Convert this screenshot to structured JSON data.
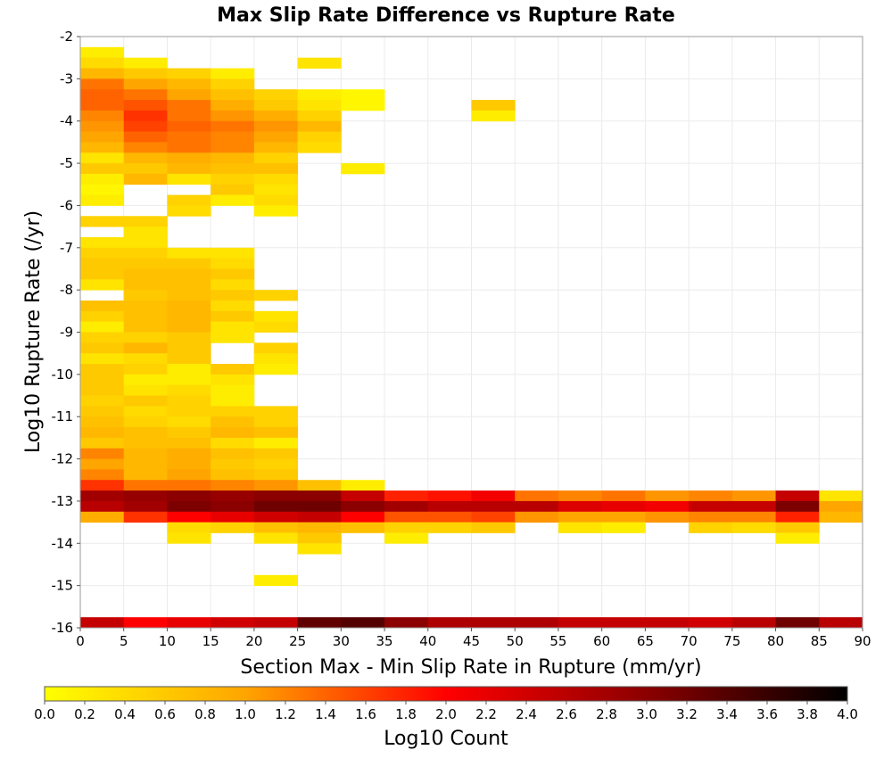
{
  "chart_data": {
    "type": "heatmap",
    "title": "Max Slip Rate Difference vs Rupture Rate",
    "xlabel": "Section Max - Min Slip Rate in Rupture (mm/yr)",
    "ylabel": "Log10 Rupture Rate (/yr)",
    "colorbar_label": "Log10 Count",
    "xlim": [
      0,
      90
    ],
    "ylim": [
      -16,
      -2
    ],
    "x_ticks": [
      "0",
      "5",
      "10",
      "15",
      "20",
      "25",
      "30",
      "35",
      "40",
      "45",
      "50",
      "55",
      "60",
      "65",
      "70",
      "75",
      "80",
      "85",
      "90"
    ],
    "y_ticks": [
      "-2",
      "-3",
      "-4",
      "-5",
      "-6",
      "-7",
      "-8",
      "-9",
      "-10",
      "-11",
      "-12",
      "-13",
      "-14",
      "-15",
      "-16"
    ],
    "colorbar_range": [
      0,
      4
    ],
    "colorbar_ticks": [
      "0.0",
      "0.2",
      "0.4",
      "0.6",
      "0.8",
      "1.0",
      "1.2",
      "1.4",
      "1.6",
      "1.8",
      "2.0",
      "2.2",
      "2.4",
      "2.6",
      "2.8",
      "3.0",
      "3.2",
      "3.4",
      "3.6",
      "3.8",
      "4.0"
    ],
    "colormap": [
      "#ffff00",
      "#ffa500",
      "#ff0000",
      "#8b0000",
      "#000000"
    ],
    "x_bin_width": 5,
    "y_bin_height": 0.25,
    "grid": true,
    "cells": [
      [
        0,
        -2.25,
        0.2
      ],
      [
        0,
        -2.5,
        0.4
      ],
      [
        5,
        -2.5,
        0.2
      ],
      [
        25,
        -2.5,
        0.3
      ],
      [
        0,
        -2.75,
        0.8
      ],
      [
        5,
        -2.75,
        0.6
      ],
      [
        10,
        -2.75,
        0.5
      ],
      [
        15,
        -2.75,
        0.2
      ],
      [
        0,
        -3.0,
        1.3
      ],
      [
        5,
        -3.0,
        1.0
      ],
      [
        10,
        -3.0,
        0.8
      ],
      [
        15,
        -3.0,
        0.5
      ],
      [
        0,
        -3.25,
        1.4
      ],
      [
        5,
        -3.25,
        1.3
      ],
      [
        10,
        -3.25,
        1.0
      ],
      [
        15,
        -3.25,
        0.7
      ],
      [
        20,
        -3.25,
        0.5
      ],
      [
        25,
        -3.25,
        0.2
      ],
      [
        30,
        -3.25,
        0.1
      ],
      [
        0,
        -3.5,
        1.4
      ],
      [
        5,
        -3.5,
        1.5
      ],
      [
        10,
        -3.5,
        1.3
      ],
      [
        15,
        -3.5,
        0.9
      ],
      [
        20,
        -3.5,
        0.6
      ],
      [
        25,
        -3.5,
        0.3
      ],
      [
        30,
        -3.5,
        0.1
      ],
      [
        45,
        -3.5,
        0.6
      ],
      [
        0,
        -3.75,
        1.2
      ],
      [
        5,
        -3.75,
        1.7
      ],
      [
        10,
        -3.75,
        1.3
      ],
      [
        15,
        -3.75,
        1.1
      ],
      [
        20,
        -3.75,
        0.9
      ],
      [
        25,
        -3.75,
        0.5
      ],
      [
        45,
        -3.75,
        0.2
      ],
      [
        0,
        -4.0,
        1.1
      ],
      [
        5,
        -4.0,
        1.6
      ],
      [
        10,
        -4.0,
        1.4
      ],
      [
        15,
        -4.0,
        1.3
      ],
      [
        20,
        -4.0,
        1.1
      ],
      [
        25,
        -4.0,
        0.8
      ],
      [
        0,
        -4.25,
        1.0
      ],
      [
        5,
        -4.25,
        1.4
      ],
      [
        10,
        -4.25,
        1.3
      ],
      [
        15,
        -4.25,
        1.2
      ],
      [
        20,
        -4.25,
        1.0
      ],
      [
        25,
        -4.25,
        0.5
      ],
      [
        0,
        -4.5,
        0.8
      ],
      [
        5,
        -4.5,
        1.2
      ],
      [
        10,
        -4.5,
        1.3
      ],
      [
        15,
        -4.5,
        1.2
      ],
      [
        20,
        -4.5,
        0.8
      ],
      [
        25,
        -4.5,
        0.4
      ],
      [
        0,
        -4.75,
        0.3
      ],
      [
        5,
        -4.75,
        0.8
      ],
      [
        10,
        -4.75,
        0.9
      ],
      [
        15,
        -4.75,
        0.8
      ],
      [
        20,
        -4.75,
        0.5
      ],
      [
        0,
        -5.0,
        0.6
      ],
      [
        5,
        -5.0,
        0.6
      ],
      [
        10,
        -5.0,
        0.8
      ],
      [
        15,
        -5.0,
        0.7
      ],
      [
        20,
        -5.0,
        0.7
      ],
      [
        30,
        -5.0,
        0.2
      ],
      [
        0,
        -5.25,
        0.2
      ],
      [
        5,
        -5.25,
        0.8
      ],
      [
        10,
        -5.25,
        0.3
      ],
      [
        15,
        -5.25,
        0.5
      ],
      [
        20,
        -5.25,
        0.4
      ],
      [
        0,
        -5.5,
        0.1
      ],
      [
        15,
        -5.5,
        0.6
      ],
      [
        20,
        -5.5,
        0.3
      ],
      [
        0,
        -5.75,
        0.2
      ],
      [
        10,
        -5.75,
        0.5
      ],
      [
        15,
        -5.75,
        0.2
      ],
      [
        20,
        -5.75,
        0.4
      ],
      [
        10,
        -6.0,
        0.4
      ],
      [
        20,
        -6.0,
        0.2
      ],
      [
        0,
        -6.25,
        0.5
      ],
      [
        5,
        -6.25,
        0.5
      ],
      [
        5,
        -6.5,
        0.3
      ],
      [
        0,
        -6.75,
        0.3
      ],
      [
        5,
        -6.75,
        0.3
      ],
      [
        0,
        -7.0,
        0.5
      ],
      [
        5,
        -7.0,
        0.5
      ],
      [
        10,
        -7.0,
        0.3
      ],
      [
        15,
        -7.0,
        0.3
      ],
      [
        0,
        -7.25,
        0.6
      ],
      [
        5,
        -7.25,
        0.6
      ],
      [
        10,
        -7.25,
        0.6
      ],
      [
        15,
        -7.25,
        0.4
      ],
      [
        0,
        -7.5,
        0.6
      ],
      [
        5,
        -7.5,
        0.7
      ],
      [
        10,
        -7.5,
        0.7
      ],
      [
        15,
        -7.5,
        0.6
      ],
      [
        0,
        -7.75,
        0.3
      ],
      [
        5,
        -7.75,
        0.7
      ],
      [
        10,
        -7.75,
        0.7
      ],
      [
        15,
        -7.75,
        0.4
      ],
      [
        5,
        -8.0,
        0.6
      ],
      [
        10,
        -8.0,
        0.7
      ],
      [
        15,
        -8.0,
        0.6
      ],
      [
        20,
        -8.0,
        0.5
      ],
      [
        0,
        -8.25,
        0.7
      ],
      [
        5,
        -8.25,
        0.7
      ],
      [
        10,
        -8.25,
        0.8
      ],
      [
        15,
        -8.25,
        0.4
      ],
      [
        0,
        -8.5,
        0.5
      ],
      [
        5,
        -8.5,
        0.7
      ],
      [
        10,
        -8.5,
        0.8
      ],
      [
        15,
        -8.5,
        0.6
      ],
      [
        20,
        -8.5,
        0.3
      ],
      [
        0,
        -8.75,
        0.2
      ],
      [
        5,
        -8.75,
        0.7
      ],
      [
        10,
        -8.75,
        0.8
      ],
      [
        15,
        -8.75,
        0.3
      ],
      [
        20,
        -8.75,
        0.4
      ],
      [
        0,
        -9.0,
        0.5
      ],
      [
        5,
        -9.0,
        0.5
      ],
      [
        10,
        -9.0,
        0.6
      ],
      [
        15,
        -9.0,
        0.3
      ],
      [
        0,
        -9.25,
        0.6
      ],
      [
        5,
        -9.25,
        0.8
      ],
      [
        10,
        -9.25,
        0.6
      ],
      [
        20,
        -9.25,
        0.5
      ],
      [
        0,
        -9.5,
        0.3
      ],
      [
        5,
        -9.5,
        0.4
      ],
      [
        10,
        -9.5,
        0.6
      ],
      [
        20,
        -9.5,
        0.3
      ],
      [
        0,
        -9.75,
        0.6
      ],
      [
        5,
        -9.75,
        0.5
      ],
      [
        10,
        -9.75,
        0.2
      ],
      [
        15,
        -9.75,
        0.6
      ],
      [
        20,
        -9.75,
        0.2
      ],
      [
        0,
        -10.0,
        0.6
      ],
      [
        5,
        -10.0,
        0.2
      ],
      [
        10,
        -10.0,
        0.2
      ],
      [
        15,
        -10.0,
        0.3
      ],
      [
        0,
        -10.25,
        0.6
      ],
      [
        5,
        -10.25,
        0.3
      ],
      [
        10,
        -10.25,
        0.4
      ],
      [
        15,
        -10.25,
        0.2
      ],
      [
        0,
        -10.5,
        0.5
      ],
      [
        5,
        -10.5,
        0.6
      ],
      [
        10,
        -10.5,
        0.5
      ],
      [
        15,
        -10.5,
        0.2
      ],
      [
        0,
        -10.75,
        0.6
      ],
      [
        5,
        -10.75,
        0.4
      ],
      [
        10,
        -10.75,
        0.5
      ],
      [
        15,
        -10.75,
        0.5
      ],
      [
        20,
        -10.75,
        0.5
      ],
      [
        0,
        -11.0,
        0.7
      ],
      [
        5,
        -11.0,
        0.5
      ],
      [
        10,
        -11.0,
        0.4
      ],
      [
        15,
        -11.0,
        0.7
      ],
      [
        20,
        -11.0,
        0.5
      ],
      [
        0,
        -11.25,
        0.8
      ],
      [
        5,
        -11.25,
        0.7
      ],
      [
        10,
        -11.25,
        0.6
      ],
      [
        15,
        -11.25,
        0.8
      ],
      [
        20,
        -11.25,
        0.7
      ],
      [
        0,
        -11.5,
        0.6
      ],
      [
        5,
        -11.5,
        0.7
      ],
      [
        10,
        -11.5,
        0.7
      ],
      [
        15,
        -11.5,
        0.4
      ],
      [
        20,
        -11.5,
        0.2
      ],
      [
        0,
        -11.75,
        1.2
      ],
      [
        5,
        -11.75,
        0.8
      ],
      [
        10,
        -11.75,
        0.9
      ],
      [
        15,
        -11.75,
        0.7
      ],
      [
        20,
        -11.75,
        0.6
      ],
      [
        0,
        -12.0,
        1.0
      ],
      [
        5,
        -12.0,
        0.8
      ],
      [
        10,
        -12.0,
        0.9
      ],
      [
        15,
        -12.0,
        0.6
      ],
      [
        20,
        -12.0,
        0.5
      ],
      [
        0,
        -12.25,
        1.2
      ],
      [
        5,
        -12.25,
        0.8
      ],
      [
        10,
        -12.25,
        1.0
      ],
      [
        15,
        -12.25,
        0.7
      ],
      [
        20,
        -12.25,
        0.6
      ],
      [
        0,
        -12.5,
        1.7
      ],
      [
        5,
        -12.5,
        1.3
      ],
      [
        10,
        -12.5,
        1.3
      ],
      [
        15,
        -12.5,
        1.2
      ],
      [
        20,
        -12.5,
        1.1
      ],
      [
        25,
        -12.5,
        0.7
      ],
      [
        30,
        -12.5,
        0.2
      ],
      [
        0,
        -12.75,
        2.8
      ],
      [
        5,
        -12.75,
        2.9
      ],
      [
        10,
        -12.75,
        3.0
      ],
      [
        15,
        -12.75,
        2.9
      ],
      [
        20,
        -12.75,
        3.0
      ],
      [
        25,
        -12.75,
        3.0
      ],
      [
        30,
        -12.75,
        2.5
      ],
      [
        35,
        -12.75,
        1.8
      ],
      [
        40,
        -12.75,
        1.9
      ],
      [
        45,
        -12.75,
        2.1
      ],
      [
        50,
        -12.75,
        1.3
      ],
      [
        55,
        -12.75,
        1.2
      ],
      [
        60,
        -12.75,
        1.3
      ],
      [
        65,
        -12.75,
        1.1
      ],
      [
        70,
        -12.75,
        1.2
      ],
      [
        75,
        -12.75,
        1.1
      ],
      [
        80,
        -12.75,
        2.5
      ],
      [
        85,
        -12.75,
        0.3
      ],
      [
        0,
        -13.0,
        2.6
      ],
      [
        5,
        -13.0,
        2.8
      ],
      [
        10,
        -13.0,
        3.1
      ],
      [
        15,
        -13.0,
        3.0
      ],
      [
        20,
        -13.0,
        3.2
      ],
      [
        25,
        -13.0,
        3.2
      ],
      [
        30,
        -13.0,
        3.0
      ],
      [
        35,
        -13.0,
        2.8
      ],
      [
        40,
        -13.0,
        2.6
      ],
      [
        45,
        -13.0,
        2.6
      ],
      [
        50,
        -13.0,
        2.6
      ],
      [
        55,
        -13.0,
        2.3
      ],
      [
        60,
        -13.0,
        2.2
      ],
      [
        65,
        -13.0,
        2.1
      ],
      [
        70,
        -13.0,
        2.5
      ],
      [
        75,
        -13.0,
        2.5
      ],
      [
        80,
        -13.0,
        3.1
      ],
      [
        85,
        -13.0,
        1.0
      ],
      [
        0,
        -13.25,
        0.9
      ],
      [
        5,
        -13.25,
        1.7
      ],
      [
        10,
        -13.25,
        2.0
      ],
      [
        15,
        -13.25,
        2.2
      ],
      [
        20,
        -13.25,
        2.4
      ],
      [
        25,
        -13.25,
        2.5
      ],
      [
        30,
        -13.25,
        2.0
      ],
      [
        35,
        -13.25,
        1.5
      ],
      [
        40,
        -13.25,
        1.5
      ],
      [
        45,
        -13.25,
        1.6
      ],
      [
        50,
        -13.25,
        1.1
      ],
      [
        55,
        -13.25,
        1.0
      ],
      [
        60,
        -13.25,
        1.0
      ],
      [
        65,
        -13.25,
        1.1
      ],
      [
        70,
        -13.25,
        1.2
      ],
      [
        75,
        -13.25,
        1.2
      ],
      [
        80,
        -13.25,
        1.8
      ],
      [
        85,
        -13.25,
        0.8
      ],
      [
        10,
        -13.5,
        0.4
      ],
      [
        15,
        -13.5,
        0.5
      ],
      [
        20,
        -13.5,
        0.7
      ],
      [
        25,
        -13.5,
        0.8
      ],
      [
        30,
        -13.5,
        0.7
      ],
      [
        35,
        -13.5,
        0.5
      ],
      [
        40,
        -13.5,
        0.5
      ],
      [
        45,
        -13.5,
        0.6
      ],
      [
        55,
        -13.5,
        0.3
      ],
      [
        60,
        -13.5,
        0.2
      ],
      [
        70,
        -13.5,
        0.5
      ],
      [
        75,
        -13.5,
        0.4
      ],
      [
        80,
        -13.5,
        0.6
      ],
      [
        10,
        -13.75,
        0.3
      ],
      [
        20,
        -13.75,
        0.3
      ],
      [
        25,
        -13.75,
        0.6
      ],
      [
        35,
        -13.75,
        0.2
      ],
      [
        80,
        -13.75,
        0.2
      ],
      [
        25,
        -14.0,
        0.3
      ],
      [
        20,
        -14.75,
        0.2
      ],
      [
        0,
        -15.75,
        2.5
      ],
      [
        5,
        -15.75,
        2.0
      ],
      [
        10,
        -15.75,
        2.2
      ],
      [
        15,
        -15.75,
        2.4
      ],
      [
        20,
        -15.75,
        2.5
      ],
      [
        25,
        -15.75,
        3.3
      ],
      [
        30,
        -15.75,
        3.4
      ],
      [
        35,
        -15.75,
        3.0
      ],
      [
        40,
        -15.75,
        2.7
      ],
      [
        45,
        -15.75,
        2.7
      ],
      [
        50,
        -15.75,
        2.7
      ],
      [
        55,
        -15.75,
        2.5
      ],
      [
        60,
        -15.75,
        2.5
      ],
      [
        65,
        -15.75,
        2.5
      ],
      [
        70,
        -15.75,
        2.4
      ],
      [
        75,
        -15.75,
        2.6
      ],
      [
        80,
        -15.75,
        3.2
      ],
      [
        85,
        -15.75,
        2.6
      ]
    ]
  }
}
